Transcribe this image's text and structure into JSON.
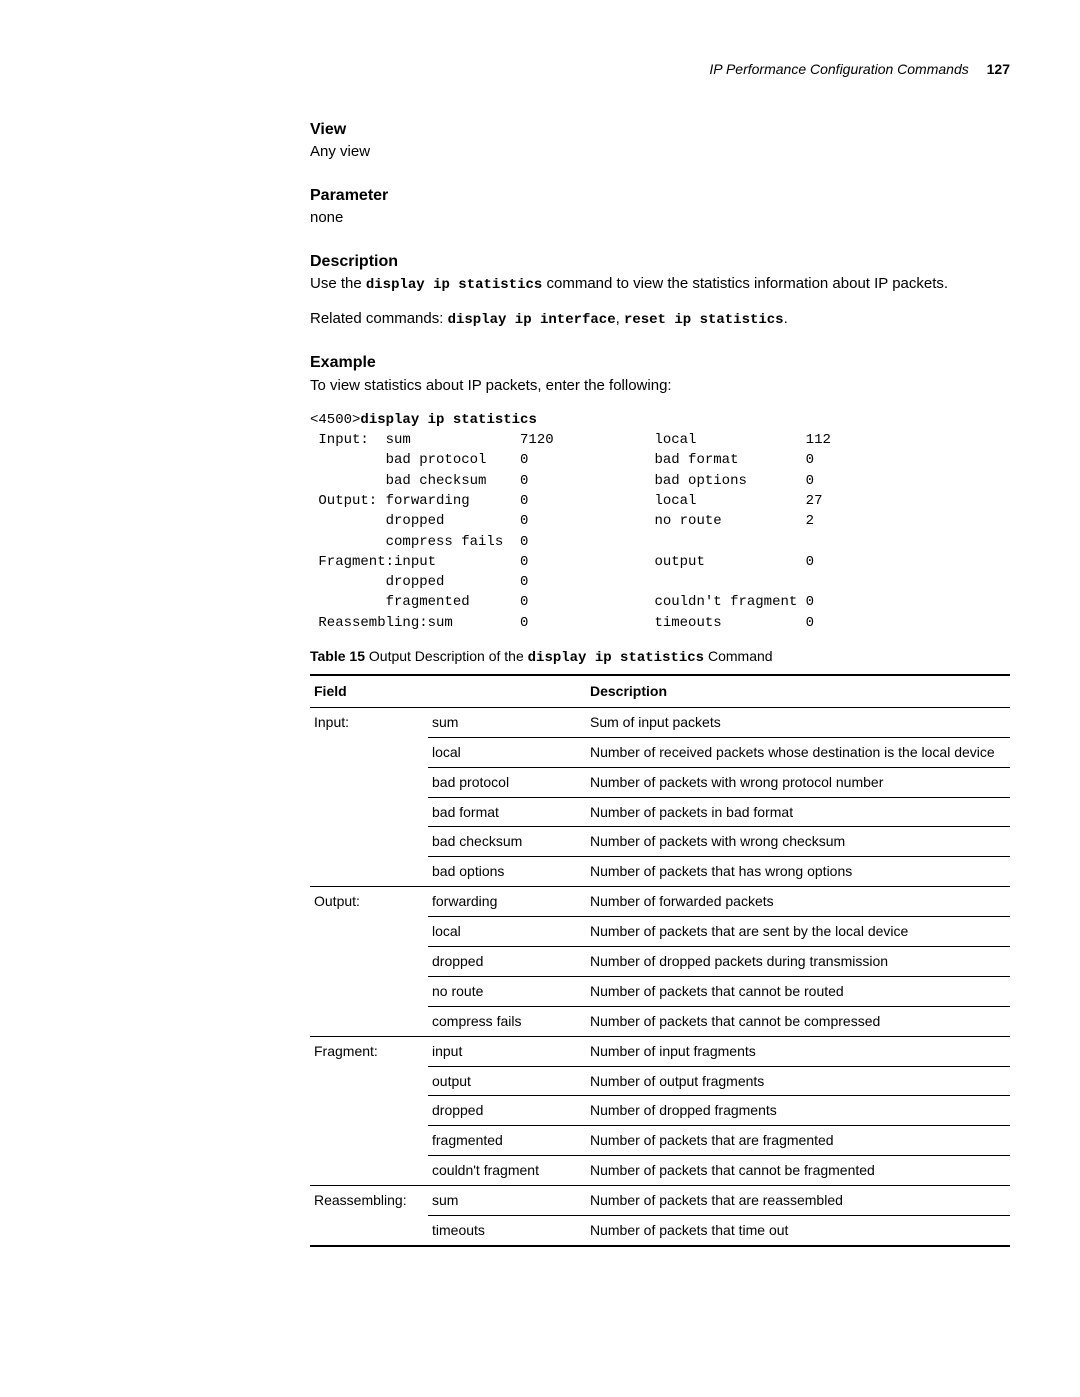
{
  "header": {
    "section": "IP Performance Configuration Commands",
    "page_number": "127"
  },
  "sections": {
    "view_h": "View",
    "view_body": "Any view",
    "param_h": "Parameter",
    "param_body": "none",
    "desc_h": "Description",
    "desc_pre": "Use the ",
    "desc_cmd": "display ip statistics",
    "desc_post": " command to view the statistics information about IP packets.",
    "related_pre": "Related commands: ",
    "related_cmd1": "display ip interface",
    "related_sep": ", ",
    "related_cmd2": "reset ip statistics",
    "related_end": ".",
    "example_h": "Example",
    "example_body": "To view statistics about IP packets, enter the following:"
  },
  "terminal": {
    "prompt": "<4500>",
    "command": "display ip statistics",
    "rows": [
      {
        "c1": " Input:  ",
        "c2": "sum            ",
        "c3": "7120",
        "c4": "local            ",
        "c5": "112"
      },
      {
        "c1": "         ",
        "c2": "bad protocol   ",
        "c3": "0",
        "c4": "bad format       ",
        "c5": "0"
      },
      {
        "c1": "         ",
        "c2": "bad checksum   ",
        "c3": "0",
        "c4": "bad options      ",
        "c5": "0"
      },
      {
        "c1": " Output: ",
        "c2": "forwarding     ",
        "c3": "0",
        "c4": "local            ",
        "c5": "27"
      },
      {
        "c1": "         ",
        "c2": "dropped        ",
        "c3": "0",
        "c4": "no route         ",
        "c5": "2"
      },
      {
        "c1": "         ",
        "c2": "compress fails ",
        "c3": "0",
        "c4": "",
        "c5": ""
      },
      {
        "c1": " Fragment:input         ",
        "c2": "",
        "c3": "0",
        "c4": "output           ",
        "c5": "0"
      },
      {
        "c1": "         ",
        "c2": "dropped        ",
        "c3": "0",
        "c4": "",
        "c5": ""
      },
      {
        "c1": "         ",
        "c2": "fragmented     ",
        "c3": "0",
        "c4": "couldn't fragment",
        "c5": "0"
      },
      {
        "c1": " Reassembling:sum       ",
        "c2": "",
        "c3": "0",
        "c4": "timeouts         ",
        "c5": "0"
      }
    ]
  },
  "table": {
    "caption_label": "Table 15",
    "caption_pre": "   Output Description of the ",
    "caption_cmd": "display ip statistics",
    "caption_post": " Command",
    "head1": "Field",
    "head2": "Description",
    "rows": [
      {
        "g": "Input:",
        "f": "sum",
        "d": "Sum of input packets",
        "gtop": true
      },
      {
        "g": "",
        "f": "local",
        "d": "Number of received packets whose destination is the local device"
      },
      {
        "g": "",
        "f": "bad protocol",
        "d": "Number of packets with wrong protocol number"
      },
      {
        "g": "",
        "f": "bad format",
        "d": "Number of packets in bad format"
      },
      {
        "g": "",
        "f": "bad checksum",
        "d": "Number of packets with wrong checksum"
      },
      {
        "g": "",
        "f": "bad options",
        "d": "Number of packets that has wrong options"
      },
      {
        "g": "Output:",
        "f": "forwarding",
        "d": "Number of forwarded packets",
        "gtop": true
      },
      {
        "g": "",
        "f": "local",
        "d": "Number of packets that are sent by the local device"
      },
      {
        "g": "",
        "f": "dropped",
        "d": "Number of dropped packets during transmission"
      },
      {
        "g": "",
        "f": "no route",
        "d": "Number of packets that cannot be routed"
      },
      {
        "g": "",
        "f": "compress fails",
        "d": "Number of packets that cannot be compressed"
      },
      {
        "g": "Fragment:",
        "f": "input",
        "d": "Number of input fragments",
        "gtop": true
      },
      {
        "g": "",
        "f": "output",
        "d": "Number of output fragments"
      },
      {
        "g": "",
        "f": "dropped",
        "d": "Number of dropped fragments"
      },
      {
        "g": "",
        "f": "fragmented",
        "d": "Number of packets that are fragmented"
      },
      {
        "g": "",
        "f": "couldn't fragment",
        "d": "Number of packets that cannot be fragmented"
      },
      {
        "g": "Reassembling:",
        "f": "sum",
        "d": "Number of packets that are reassembled",
        "gtop": true
      },
      {
        "g": "",
        "f": "timeouts",
        "d": "Number of packets that time out",
        "last": true
      }
    ]
  }
}
